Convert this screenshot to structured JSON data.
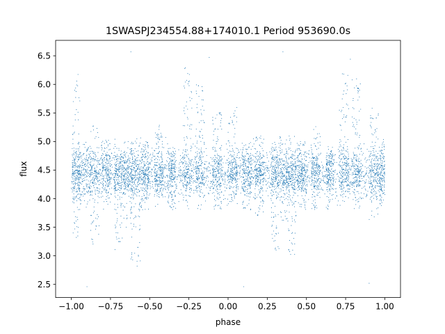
{
  "chart_data": {
    "type": "scatter",
    "title": "1SWASPJ234554.88+174010.1 Period 953690.0s",
    "xlabel": "phase",
    "ylabel": "flux",
    "xlim": [
      -1.1,
      1.1
    ],
    "ylim": [
      2.27,
      6.77
    ],
    "xticks": [
      -1.0,
      -0.75,
      -0.5,
      -0.25,
      0.0,
      0.25,
      0.5,
      0.75,
      1.0
    ],
    "xtick_labels": [
      "−1.00",
      "−0.75",
      "−0.50",
      "−0.25",
      "0.00",
      "0.25",
      "0.50",
      "0.75",
      "1.00"
    ],
    "yticks": [
      2.5,
      3.0,
      3.5,
      4.0,
      4.5,
      5.0,
      5.5,
      6.0,
      6.5
    ],
    "ytick_labels": [
      "2.5",
      "3.0",
      "3.5",
      "4.0",
      "4.5",
      "5.0",
      "5.5",
      "6.0",
      "6.5"
    ],
    "point_color": "#1f77b4",
    "grid": false,
    "legend": "none",
    "series": [
      {
        "baseline_flux": 4.45,
        "clusters": [
          {
            "x": -0.97,
            "w": 0.025,
            "min": 3.3,
            "max": 6.2
          },
          {
            "x": -0.92,
            "w": 0.04,
            "min": 3.9,
            "max": 5.0
          },
          {
            "x": -0.85,
            "w": 0.03,
            "min": 3.2,
            "max": 5.3
          },
          {
            "x": -0.78,
            "w": 0.03,
            "min": 3.9,
            "max": 5.1
          },
          {
            "x": -0.7,
            "w": 0.025,
            "min": 3.1,
            "max": 5.1
          },
          {
            "x": -0.64,
            "w": 0.03,
            "min": 3.5,
            "max": 5.0
          },
          {
            "x": -0.59,
            "w": 0.03,
            "min": 2.9,
            "max": 5.1
          },
          {
            "x": -0.53,
            "w": 0.025,
            "min": 3.8,
            "max": 5.0
          },
          {
            "x": -0.44,
            "w": 0.03,
            "min": 3.9,
            "max": 5.3
          },
          {
            "x": -0.36,
            "w": 0.025,
            "min": 3.8,
            "max": 4.9
          },
          {
            "x": -0.26,
            "w": 0.03,
            "min": 4.0,
            "max": 6.3
          },
          {
            "x": -0.18,
            "w": 0.03,
            "min": 3.8,
            "max": 6.0
          },
          {
            "x": -0.07,
            "w": 0.03,
            "min": 3.8,
            "max": 5.6
          },
          {
            "x": 0.03,
            "w": 0.03,
            "min": 3.9,
            "max": 5.6
          },
          {
            "x": 0.12,
            "w": 0.03,
            "min": 3.8,
            "max": 5.0
          },
          {
            "x": 0.2,
            "w": 0.03,
            "min": 3.7,
            "max": 5.1
          },
          {
            "x": 0.3,
            "w": 0.025,
            "min": 3.1,
            "max": 5.0
          },
          {
            "x": 0.36,
            "w": 0.03,
            "min": 3.6,
            "max": 5.1
          },
          {
            "x": 0.41,
            "w": 0.025,
            "min": 3.0,
            "max": 5.1
          },
          {
            "x": 0.47,
            "w": 0.03,
            "min": 3.8,
            "max": 5.0
          },
          {
            "x": 0.56,
            "w": 0.03,
            "min": 3.8,
            "max": 5.3
          },
          {
            "x": 0.65,
            "w": 0.025,
            "min": 3.8,
            "max": 4.9
          },
          {
            "x": 0.74,
            "w": 0.03,
            "min": 4.0,
            "max": 6.2
          },
          {
            "x": 0.82,
            "w": 0.03,
            "min": 3.8,
            "max": 6.1
          },
          {
            "x": 0.93,
            "w": 0.03,
            "min": 3.6,
            "max": 5.6
          },
          {
            "x": 0.99,
            "w": 0.025,
            "min": 3.9,
            "max": 5.0
          }
        ],
        "outliers": [
          {
            "x": -0.62,
            "y": 6.57
          },
          {
            "x": -0.12,
            "y": 6.47
          },
          {
            "x": 0.35,
            "y": 6.57
          },
          {
            "x": 0.78,
            "y": 6.44
          },
          {
            "x": -0.9,
            "y": 2.46
          },
          {
            "x": 0.1,
            "y": 2.46
          },
          {
            "x": 0.9,
            "y": 2.52
          },
          {
            "x": -0.58,
            "y": 2.82
          }
        ]
      }
    ]
  }
}
